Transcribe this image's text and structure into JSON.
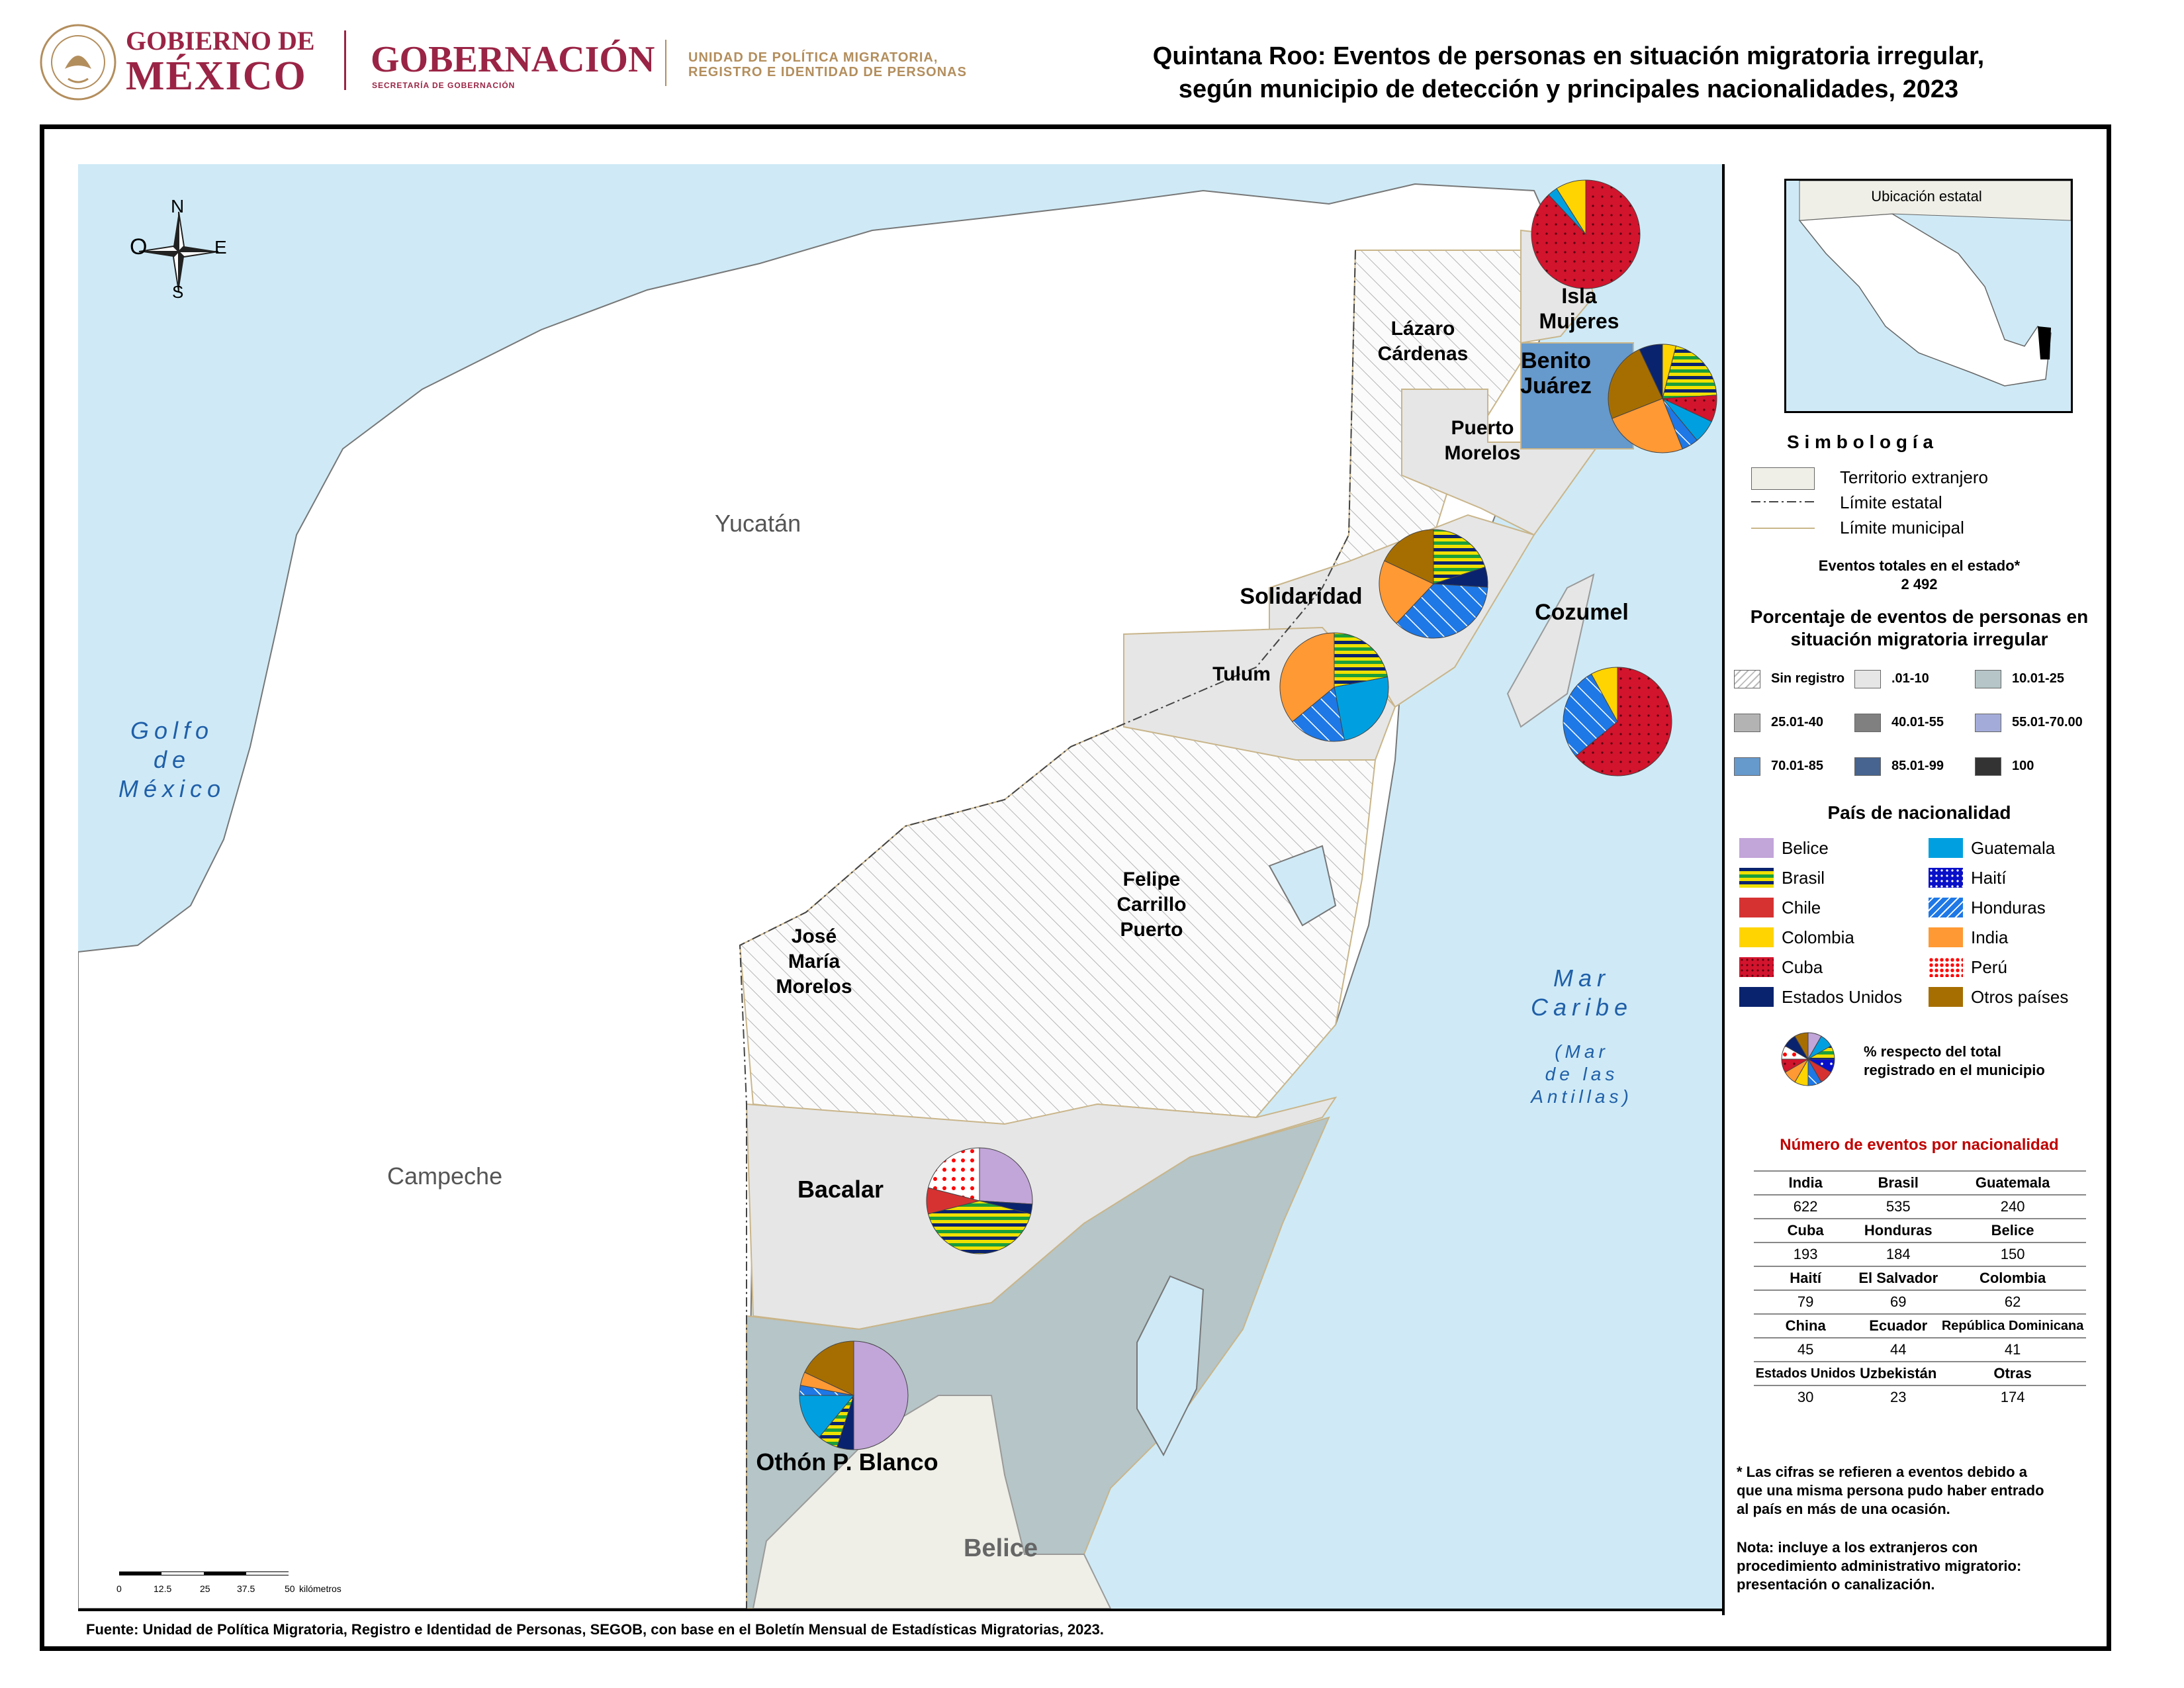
{
  "header": {
    "gobierno_de": "GOBIERNO DE",
    "mexico": "MÉXICO",
    "gobernacion": "GOBERNACIÓN",
    "secretaria": "SECRETARÍA DE GOBERNACIÓN",
    "unidad_line1": "UNIDAD DE POLÍTICA MIGRATORIA,",
    "unidad_line2": "REGISTRO E IDENTIDAD DE PERSONAS",
    "seal_text": "ESTADOS UNIDOS MEXICANOS"
  },
  "title_line1": "Quintana Roo: Eventos de personas en situación migratoria irregular,",
  "title_line2": "según municipio de detección y principales nacionalidades, 2023",
  "compass": {
    "n": "N",
    "s": "S",
    "e": "E",
    "o": "O"
  },
  "regions": {
    "yucatan": "Yucatán",
    "campeche": "Campeche",
    "belice": "Belice"
  },
  "seas": {
    "golfo": [
      "Golfo",
      "de",
      "México"
    ],
    "caribe": [
      "Mar",
      "Caribe"
    ],
    "antillas": [
      "(Mar",
      "de las",
      "Antillas)"
    ]
  },
  "municipios": {
    "isla_mujeres": [
      "Isla",
      "Mujeres"
    ],
    "lazaro": [
      "Lázaro",
      "Cárdenas"
    ],
    "benito": [
      "Benito",
      "Juárez"
    ],
    "puerto_morelos": [
      "Puerto",
      "Morelos"
    ],
    "solidaridad": "Solidaridad",
    "cozumel": "Cozumel",
    "tulum": "Tulum",
    "felipe": [
      "Felipe",
      "Carrillo",
      "Puerto"
    ],
    "jose_maria": [
      "José",
      "María",
      "Morelos"
    ],
    "bacalar": "Bacalar",
    "othon": "Othón P. Blanco"
  },
  "scale": {
    "ticks": [
      "0",
      "12.5",
      "25",
      "37.5",
      "50"
    ],
    "unit": "kilómetros"
  },
  "inset_title": "Ubicación estatal",
  "legend": {
    "simbologia": "S i m b o l o g í a",
    "items": [
      "Territorio extranjero",
      "Límite estatal",
      "Límite municipal"
    ],
    "total_label": "Eventos totales en el estado*",
    "total_value": "2 492",
    "pct_title_1": "Porcentaje de eventos de personas en",
    "pct_title_2": "situación migratoria irregular",
    "density_classes": [
      {
        "label": "Sin registro",
        "color": "hatch"
      },
      {
        "label": ".01-10",
        "color": "#e6e6e6"
      },
      {
        "label": "10.01-25",
        "color": "#b5c5c8"
      },
      {
        "label": "25.01-40",
        "color": "#b3b3b3"
      },
      {
        "label": "40.01-55",
        "color": "#808080"
      },
      {
        "label": "55.01-70.00",
        "color": "#a3acd9"
      },
      {
        "label": "70.01-85",
        "color": "#6699cc"
      },
      {
        "label": "85.01-99",
        "color": "#46648f"
      },
      {
        "label": "100",
        "color": "#333333"
      }
    ],
    "nat_title": "País de nacionalidad",
    "nationalities": [
      {
        "label": "Belice",
        "color": "#c2a5d9",
        "pattern": "solid"
      },
      {
        "label": "Guatemala",
        "color": "#00a0e0",
        "pattern": "solid"
      },
      {
        "label": "Brasil",
        "color": "#f0e000",
        "pattern": "brasil"
      },
      {
        "label": "Haití",
        "color": "#0a10c8",
        "pattern": "dots"
      },
      {
        "label": "Chile",
        "color": "#d63232",
        "pattern": "solid"
      },
      {
        "label": "Honduras",
        "color": "#1e78e6",
        "pattern": "hond"
      },
      {
        "label": "Colombia",
        "color": "#ffd400",
        "pattern": "solid"
      },
      {
        "label": "India",
        "color": "#ff9933",
        "pattern": "solid"
      },
      {
        "label": "Cuba",
        "color": "#d2142d",
        "pattern": "dotsred"
      },
      {
        "label": "Perú",
        "color": "#ff0000",
        "pattern": "peru"
      },
      {
        "label": "Estados Unidos",
        "color": "#0a236e",
        "pattern": "solid"
      },
      {
        "label": "Otros países",
        "color": "#a66e00",
        "pattern": "solid"
      }
    ],
    "pie_note_1": "% respecto del total",
    "pie_note_2": "registrado en el municipio",
    "table_title": "Número de eventos por nacionalidad",
    "table": [
      [
        [
          "India",
          "622"
        ],
        [
          "Brasil",
          "535"
        ],
        [
          "Guatemala",
          "240"
        ]
      ],
      [
        [
          "Cuba",
          "193"
        ],
        [
          "Honduras",
          "184"
        ],
        [
          "Belice",
          "150"
        ]
      ],
      [
        [
          "Haití",
          "79"
        ],
        [
          "El Salvador",
          "69"
        ],
        [
          "Colombia",
          "62"
        ]
      ],
      [
        [
          "China",
          "45"
        ],
        [
          "Ecuador",
          "44"
        ],
        [
          "República Dominicana",
          "41"
        ]
      ],
      [
        [
          "Estados Unidos",
          "30"
        ],
        [
          "Uzbekistán",
          "23"
        ],
        [
          "Otras",
          "174"
        ]
      ]
    ],
    "footnote": [
      "* Las cifras se refieren a eventos debido a",
      "que una misma persona pudo haber entrado",
      "al país en más de una ocasión."
    ],
    "note": [
      "Nota: incluye a los extranjeros con",
      "procedimiento administrativo migratorio:",
      "presentación o canalización."
    ]
  },
  "pies": [
    {
      "municipio": "Isla Mujeres",
      "slices": [
        [
          "Cuba",
          88
        ],
        [
          "Guatemala",
          3
        ],
        [
          "Colombia",
          9
        ]
      ]
    },
    {
      "municipio": "Benito Juárez",
      "slices": [
        [
          "Colombia",
          4
        ],
        [
          "Brasil",
          20
        ],
        [
          "Cuba",
          8
        ],
        [
          "Guatemala",
          7
        ],
        [
          "Honduras",
          5
        ],
        [
          "India",
          25
        ],
        [
          "Otros países",
          24
        ],
        [
          "Estados Unidos",
          7
        ]
      ]
    },
    {
      "municipio": "Solidaridad",
      "slices": [
        [
          "Brasil",
          20
        ],
        [
          "Estados Unidos",
          6
        ],
        [
          "Honduras",
          36
        ],
        [
          "India",
          20
        ],
        [
          "Otros países",
          18
        ]
      ]
    },
    {
      "municipio": "Tulum",
      "slices": [
        [
          "Brasil",
          22
        ],
        [
          "Guatemala",
          25
        ],
        [
          "Honduras",
          17
        ],
        [
          "India",
          36
        ]
      ]
    },
    {
      "municipio": "Cozumel",
      "slices": [
        [
          "Cuba",
          64
        ],
        [
          "Honduras",
          28
        ],
        [
          "Colombia",
          8
        ]
      ]
    },
    {
      "municipio": "Bacalar",
      "slices": [
        [
          "Belice",
          26
        ],
        [
          "Estados Unidos",
          3
        ],
        [
          "Brasil",
          42
        ],
        [
          "Chile",
          8
        ],
        [
          "Perú",
          21
        ]
      ]
    },
    {
      "municipio": "Othón P. Blanco",
      "slices": [
        [
          "Belice",
          50
        ],
        [
          "Estados Unidos",
          5
        ],
        [
          "Brasil",
          6
        ],
        [
          "Guatemala",
          14
        ],
        [
          "Honduras",
          3
        ],
        [
          "India",
          4
        ],
        [
          "Otros países",
          18
        ]
      ]
    }
  ],
  "source": "Fuente: Unidad de Política Migratoria, Registro e Identidad de Personas, SEGOB, con base en el Boletín Mensual de Estadísticas Migratorias, 2023."
}
